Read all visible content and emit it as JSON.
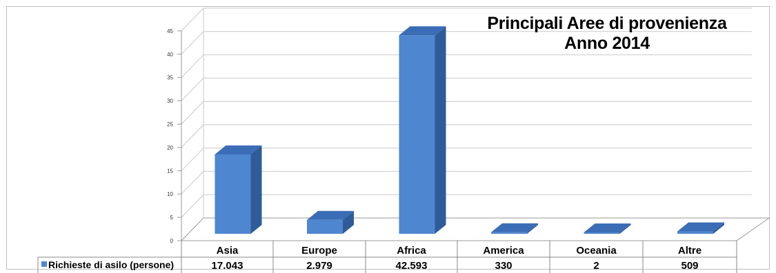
{
  "chart_data": {
    "type": "bar",
    "title": "Principali Aree di provenienza",
    "subtitle": "Anno 2014",
    "categories": [
      "Asia",
      "Europe",
      "Africa",
      "America",
      "Oceania",
      "Altre"
    ],
    "series": [
      {
        "name": "Richieste di asilo (persone)",
        "values": [
          17.043,
          2.979,
          42.593,
          0.33,
          0.002,
          0.509
        ],
        "labels": [
          "17.043",
          "2.979",
          "42.593",
          "330",
          "2",
          "509"
        ],
        "color": "#4f86d0"
      }
    ],
    "yticks": [
      "0",
      "5",
      "10",
      "15",
      "20",
      "25",
      "30",
      "35",
      "40",
      "45"
    ],
    "ylim": [
      0,
      45
    ],
    "grid": true,
    "legend": "data-table",
    "three_d": true
  }
}
